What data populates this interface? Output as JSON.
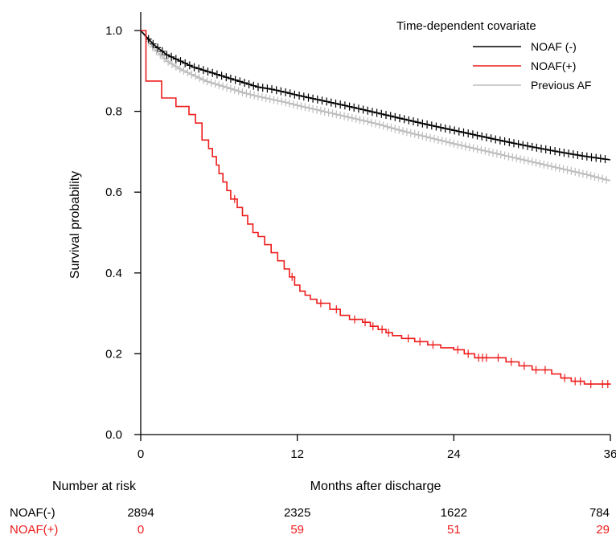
{
  "chart_data": {
    "type": "line",
    "subtype": "kaplan-meier",
    "title": "",
    "xlabel": "Months after discharge",
    "ylabel": "Survival probability",
    "xlim": [
      0,
      36
    ],
    "ylim": [
      0,
      1
    ],
    "x_ticks": [
      0,
      12,
      24,
      36
    ],
    "y_ticks": [
      "0.0",
      "0.2",
      "0.4",
      "0.6",
      "0.8",
      "1.0"
    ],
    "grid": false,
    "legend": {
      "title": "Time-dependent covariate",
      "position": "top-right"
    },
    "series": [
      {
        "name": "NOAF (-)",
        "color": "#000000",
        "x": [
          0,
          1,
          2,
          3,
          4,
          5,
          6,
          7,
          8,
          9,
          10,
          11,
          12,
          14,
          16,
          18,
          20,
          22,
          24,
          26,
          28,
          30,
          32,
          34,
          36
        ],
        "y": [
          1.0,
          0.965,
          0.94,
          0.925,
          0.91,
          0.9,
          0.89,
          0.88,
          0.87,
          0.86,
          0.855,
          0.848,
          0.84,
          0.826,
          0.812,
          0.797,
          0.782,
          0.767,
          0.753,
          0.739,
          0.725,
          0.712,
          0.7,
          0.689,
          0.68
        ]
      },
      {
        "name": "NOAF(+)",
        "color": "#ee1c1c",
        "x": [
          0,
          0.4,
          0.4,
          1.6,
          1.6,
          2.7,
          2.7,
          3.7,
          3.7,
          4.2,
          4.2,
          4.7,
          4.7,
          5.2,
          5.2,
          5.5,
          5.5,
          5.8,
          5.8,
          6.0,
          6.0,
          6.3,
          6.3,
          6.6,
          6.6,
          6.9,
          6.9,
          7.4,
          7.4,
          7.8,
          7.8,
          8.2,
          8.2,
          8.6,
          8.6,
          9.0,
          9.0,
          9.5,
          9.5,
          10.0,
          10.0,
          10.5,
          10.5,
          11.0,
          11.0,
          11.4,
          11.4,
          11.8,
          11.8,
          12.2,
          12.2,
          12.6,
          12.6,
          13.0,
          13.0,
          13.5,
          13.5,
          14.5,
          14.5,
          15.3,
          15.3,
          16.0,
          16.0,
          17.0,
          17.0,
          17.6,
          17.6,
          18.2,
          18.2,
          18.8,
          18.8,
          19.3,
          19.3,
          20.0,
          20.0,
          21.0,
          21.0,
          22.0,
          22.0,
          23.0,
          23.0,
          24.0,
          24.0,
          24.8,
          24.8,
          25.6,
          25.6,
          27.0,
          27.0,
          28.0,
          28.0,
          29.0,
          29.0,
          30.0,
          30.0,
          31.5,
          31.5,
          32.2,
          32.2,
          33.0,
          33.0,
          34.0,
          34.0,
          35.0,
          35.0,
          36.0
        ],
        "y": [
          1.0,
          1.0,
          0.875,
          0.875,
          0.833,
          0.833,
          0.812,
          0.812,
          0.792,
          0.792,
          0.771,
          0.771,
          0.729,
          0.729,
          0.708,
          0.708,
          0.688,
          0.688,
          0.667,
          0.667,
          0.646,
          0.646,
          0.625,
          0.625,
          0.604,
          0.604,
          0.583,
          0.583,
          0.562,
          0.562,
          0.542,
          0.542,
          0.521,
          0.521,
          0.5,
          0.5,
          0.49,
          0.49,
          0.47,
          0.47,
          0.45,
          0.45,
          0.43,
          0.43,
          0.41,
          0.41,
          0.39,
          0.39,
          0.37,
          0.37,
          0.355,
          0.355,
          0.345,
          0.345,
          0.335,
          0.335,
          0.325,
          0.325,
          0.31,
          0.31,
          0.295,
          0.295,
          0.285,
          0.285,
          0.278,
          0.278,
          0.268,
          0.268,
          0.26,
          0.26,
          0.252,
          0.252,
          0.245,
          0.245,
          0.238,
          0.238,
          0.23,
          0.23,
          0.222,
          0.222,
          0.215,
          0.215,
          0.21,
          0.21,
          0.2,
          0.2,
          0.19,
          0.19,
          0.19,
          0.19,
          0.18,
          0.18,
          0.17,
          0.17,
          0.16,
          0.16,
          0.15,
          0.15,
          0.14,
          0.14,
          0.132,
          0.132,
          0.125,
          0.125,
          0.125,
          0.125
        ]
      },
      {
        "name": "Previous AF",
        "color": "#bdbdbd",
        "x": [
          0,
          1,
          2,
          3,
          4,
          5,
          6,
          7,
          8,
          9,
          10,
          11,
          12,
          14,
          16,
          18,
          20,
          22,
          24,
          26,
          28,
          30,
          32,
          34,
          36
        ],
        "y": [
          1.0,
          0.955,
          0.925,
          0.905,
          0.89,
          0.875,
          0.865,
          0.855,
          0.845,
          0.837,
          0.83,
          0.823,
          0.815,
          0.8,
          0.785,
          0.77,
          0.752,
          0.736,
          0.72,
          0.705,
          0.69,
          0.675,
          0.66,
          0.645,
          0.628
        ]
      }
    ],
    "risk_table": {
      "title": "Number at risk",
      "rows": [
        {
          "label": "NOAF(-)",
          "color": "#000000",
          "values": [
            "2894",
            "2325",
            "1622",
            "784"
          ]
        },
        {
          "label": "NOAF(+)",
          "color": "#ee1c1c",
          "values": [
            "0",
            "59",
            "51",
            "29"
          ]
        }
      ]
    }
  }
}
